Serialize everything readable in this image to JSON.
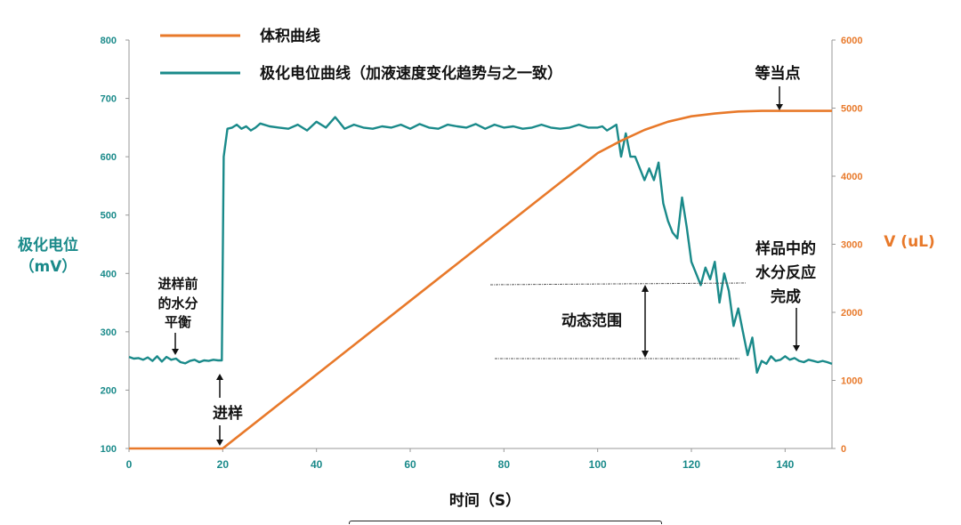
{
  "chart_data": {
    "type": "line",
    "xlabel": "时间（S）",
    "ylabel_left": [
      "极化电位",
      "（mV）"
    ],
    "ylabel_right": "V (uL)",
    "xlim": [
      0,
      150
    ],
    "ylim_left": [
      100,
      800
    ],
    "ylim_right": [
      0,
      6000
    ],
    "x_ticks": [
      "0",
      "20",
      "40",
      "60",
      "80",
      "100",
      "120",
      "140"
    ],
    "y_ticks_left": [
      "100",
      "200",
      "300",
      "400",
      "500",
      "600",
      "700",
      "800"
    ],
    "y_ticks_right": [
      "0",
      "1000",
      "2000",
      "3000",
      "4000",
      "5000",
      "6000"
    ],
    "legend_position": "top-left",
    "grid": false,
    "colors": {
      "volume": "#e8792a",
      "potential": "#1a8a8a"
    },
    "series": [
      {
        "name": "体积曲线",
        "axis": "right",
        "x": [
          0,
          20,
          100,
          105,
          110,
          115,
          120,
          125,
          130,
          135,
          140,
          145,
          150
        ],
        "y": [
          0,
          0,
          4340,
          4520,
          4680,
          4800,
          4880,
          4920,
          4950,
          4960,
          4960,
          4960,
          4960
        ]
      },
      {
        "name": "极化电位曲线（加液速度变化趋势与之一致）",
        "axis": "left",
        "x": [
          0,
          1,
          2,
          3,
          4,
          5,
          6,
          7,
          8,
          9,
          10,
          11,
          12,
          13,
          14,
          15,
          16,
          17,
          18,
          19,
          19.8,
          20.2,
          21,
          22,
          23,
          24,
          25,
          26,
          27,
          28,
          30,
          32,
          34,
          36,
          38,
          40,
          42,
          44,
          46,
          48,
          50,
          52,
          54,
          56,
          58,
          60,
          62,
          64,
          66,
          68,
          70,
          72,
          74,
          76,
          78,
          80,
          82,
          84,
          86,
          88,
          90,
          92,
          94,
          96,
          98,
          100,
          101,
          102,
          103,
          104,
          105,
          106,
          107,
          108,
          109,
          110,
          111,
          112,
          113,
          114,
          115,
          116,
          117,
          118,
          119,
          120,
          121,
          122,
          123,
          124,
          125,
          126,
          127,
          128,
          129,
          130,
          131,
          132,
          133,
          134,
          135,
          136,
          137,
          138,
          139,
          140,
          141,
          142,
          143,
          144,
          145,
          146,
          147,
          148,
          149,
          150
        ],
        "y": [
          257,
          254,
          255,
          252,
          256,
          250,
          258,
          249,
          257,
          252,
          254,
          248,
          246,
          250,
          252,
          248,
          251,
          250,
          252,
          251,
          251,
          600,
          648,
          650,
          655,
          648,
          652,
          645,
          650,
          657,
          652,
          650,
          648,
          655,
          645,
          660,
          650,
          668,
          648,
          655,
          650,
          648,
          652,
          650,
          655,
          648,
          656,
          650,
          648,
          655,
          652,
          650,
          656,
          648,
          655,
          650,
          652,
          648,
          650,
          655,
          650,
          648,
          650,
          655,
          650,
          650,
          652,
          645,
          650,
          655,
          600,
          640,
          600,
          600,
          580,
          560,
          580,
          560,
          590,
          520,
          490,
          470,
          460,
          530,
          480,
          420,
          400,
          380,
          410,
          390,
          420,
          350,
          400,
          370,
          310,
          340,
          300,
          260,
          290,
          230,
          250,
          245,
          258,
          250,
          252,
          258,
          252,
          255,
          250,
          248,
          252,
          250,
          248,
          250,
          248,
          245
        ]
      }
    ],
    "annotations": {
      "pre_balance": [
        "进样前",
        "的水分",
        "平衡"
      ],
      "injection": "进样",
      "dynamic_range": "动态范围",
      "equivalence_point": "等当点",
      "reaction_complete": [
        "样品中的",
        "水分反应",
        "完成"
      ]
    }
  }
}
